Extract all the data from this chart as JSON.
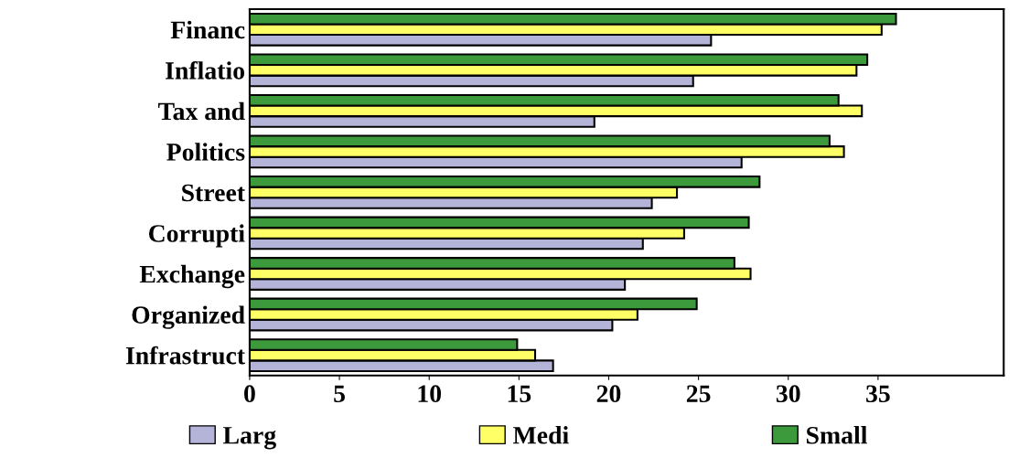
{
  "chart_data": {
    "type": "bar",
    "orientation": "horizontal",
    "categories": [
      "Financ",
      "Inflatio",
      "Tax and",
      "Politics",
      "Street",
      "Corrupti",
      "Exchange",
      "Organized",
      "Infrastruct"
    ],
    "series": [
      {
        "name": "Larg",
        "color": "#b4b4d8",
        "values": [
          25.7,
          24.7,
          19.2,
          27.4,
          22.4,
          21.9,
          20.9,
          20.2,
          16.9
        ]
      },
      {
        "name": "Medi",
        "color": "#ffff66",
        "values": [
          35.2,
          33.8,
          34.1,
          33.1,
          23.8,
          24.2,
          27.9,
          21.6,
          15.9
        ]
      },
      {
        "name": "Small",
        "color": "#3c9a3c",
        "values": [
          36.0,
          34.4,
          32.8,
          32.3,
          28.4,
          27.8,
          27.0,
          24.9,
          14.9
        ]
      }
    ],
    "xlim": [
      0,
      42
    ],
    "xticks": [
      0,
      5,
      10,
      15,
      20,
      25,
      30,
      35
    ],
    "grid": false,
    "legend": "bottom"
  }
}
